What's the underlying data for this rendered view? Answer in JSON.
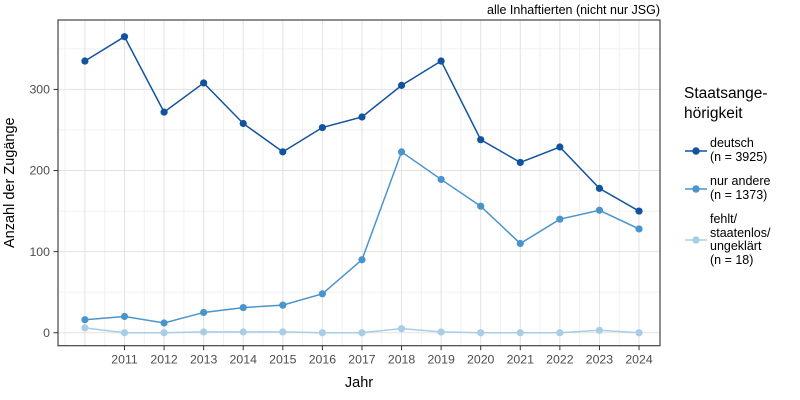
{
  "title": "alle Inhaftierten (nicht nur JSG)",
  "axes": {
    "x_label": "Jahr",
    "y_label": "Anzahl der Zugänge"
  },
  "legend": {
    "title": "Staatsange-\nhörigkeit",
    "items": [
      {
        "label": "deutsch\n(n = 3925)",
        "color": "#11539E"
      },
      {
        "label": "nur andere\n(n = 1373)",
        "color": "#4A94CD"
      },
      {
        "label": "fehlt/\nstaatenlos/\nungeklärt\n(n = 18)",
        "color": "#A9CDE6"
      }
    ]
  },
  "chart_data": {
    "type": "line",
    "title": "alle Inhaftierten (nicht nur JSG)",
    "xlabel": "Jahr",
    "ylabel": "Anzahl der Zugänge",
    "x": [
      2010,
      2011,
      2012,
      2013,
      2014,
      2015,
      2016,
      2017,
      2018,
      2019,
      2020,
      2021,
      2022,
      2023,
      2024
    ],
    "series": [
      {
        "name": "deutsch (n = 3925)",
        "color": "#11539E",
        "values": [
          335,
          365,
          272,
          308,
          258,
          223,
          253,
          266,
          305,
          335,
          238,
          210,
          229,
          178,
          150
        ]
      },
      {
        "name": "nur andere (n = 1373)",
        "color": "#4A94CD",
        "values": [
          16,
          20,
          12,
          25,
          31,
          34,
          48,
          90,
          223,
          189,
          156,
          110,
          140,
          151,
          128
        ]
      },
      {
        "name": "fehlt/staatenlos/ungeklärt (n = 18)",
        "color": "#A9CDE6",
        "values": [
          6,
          0,
          0,
          1,
          1,
          1,
          0,
          0,
          5,
          1,
          0,
          0,
          0,
          3,
          0
        ]
      }
    ],
    "xlim": [
      2009.32,
      2024.53
    ],
    "ylim": [
      -16,
      385.6
    ],
    "x_tick_labels": [
      "2011",
      "2012",
      "2013",
      "2014",
      "2015",
      "2016",
      "2017",
      "2018",
      "2019",
      "2020",
      "2021",
      "2022",
      "2023",
      "2024"
    ],
    "x_tick_values": [
      2011,
      2012,
      2013,
      2014,
      2015,
      2016,
      2017,
      2018,
      2019,
      2020,
      2021,
      2022,
      2023,
      2024
    ],
    "y_tick_labels": [
      "0",
      "100",
      "200",
      "300"
    ],
    "y_tick_values": [
      0,
      100,
      200,
      300
    ],
    "x_major_gridlines": [
      2010,
      2011,
      2012,
      2013,
      2014,
      2015,
      2016,
      2017,
      2018,
      2019,
      2020,
      2021,
      2022,
      2023,
      2024
    ],
    "x_minor_gridlines": [
      2009.5,
      2010.5,
      2011.5,
      2012.5,
      2013.5,
      2014.5,
      2015.5,
      2016.5,
      2017.5,
      2018.5,
      2019.5,
      2020.5,
      2021.5,
      2022.5,
      2023.5
    ],
    "y_major_gridlines": [
      0,
      100,
      200,
      300
    ],
    "y_minor_gridlines": [
      50,
      150,
      250,
      350
    ],
    "grid": "major+minor",
    "legend_position": "right",
    "style": {
      "grid_major_color": "#e2e2e2",
      "grid_minor_color": "#f0f0f0",
      "panel_border_color": "#444444",
      "tick_mark_color": "#333333",
      "tick_label_color": "#4d4d4d"
    }
  }
}
